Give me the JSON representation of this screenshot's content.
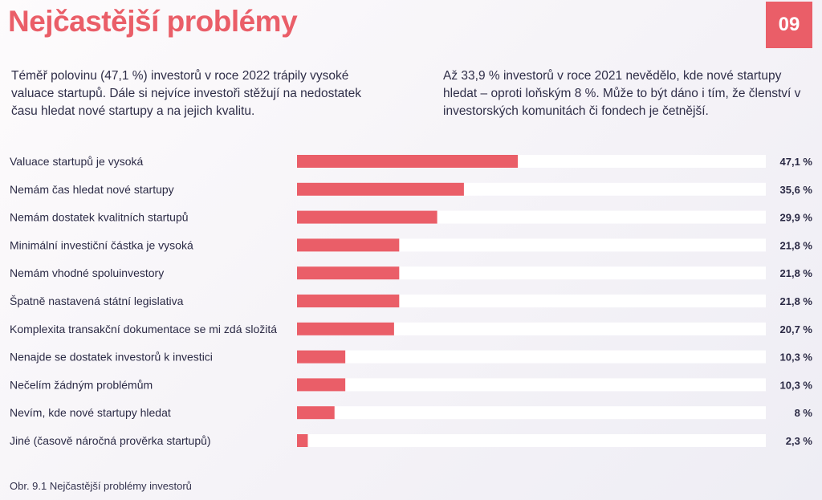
{
  "header": {
    "title": "Nejčastější problémy",
    "page_number": "09",
    "accent_color": "#ea5e68",
    "text_color": "#2b2a45"
  },
  "intro": {
    "left": "Téměř polovinu (47,1 %) investorů v roce 2022 trápily vysoké valuace startupů. Dále si nejvíce investoři stěžují na nedostatek času hledat nové startupy a na jejich kvalitu.",
    "right": "Až 33,9 % investorů v roce 2021 nevědělo, kde nové startupy hledat – oproti loňským 8 %. Může to být dáno i tím, že členství v investorských komunitách či fondech je četnější."
  },
  "chart_data": {
    "type": "bar",
    "orientation": "horizontal",
    "categories": [
      "Valuace startupů je vysoká",
      "Nemám čas hledat nové startupy",
      "Nemám dostatek kvalitních startupů",
      "Minimální investiční částka je vysoká",
      "Nemám vhodné spoluinvestory",
      "Špatně nastavená státní legislativa",
      "Komplexita transakční dokumentace se mi zdá složitá",
      "Nenajde se dostatek investorů k investici",
      "Nečelím žádným problémům",
      "Nevím, kde nové startupy hledat",
      "Jiné (časově náročná prověrka startupů)"
    ],
    "values": [
      47.1,
      35.6,
      29.9,
      21.8,
      21.8,
      21.8,
      20.7,
      10.3,
      10.3,
      8,
      2.3
    ],
    "value_labels": [
      "47,1 %",
      "35,6 %",
      "29,9 %",
      "21,8 %",
      "21,8 %",
      "21,8 %",
      "20,7 %",
      "10,3 %",
      "10,3 %",
      "8 %",
      "2,3 %"
    ],
    "xlim": [
      0,
      100
    ],
    "grid": false,
    "legend": "none",
    "bar_color": "#ea5e68",
    "track_color": "#ffffff"
  },
  "caption": "Obr. 9.1 Nejčastější problémy investorů"
}
